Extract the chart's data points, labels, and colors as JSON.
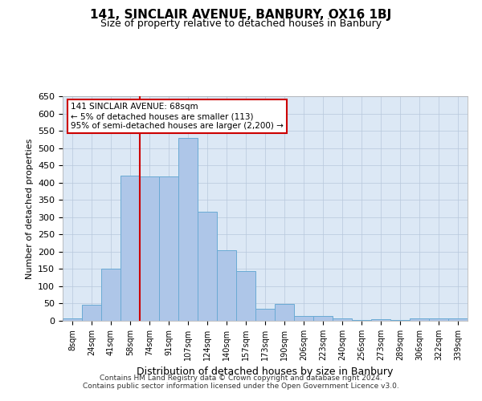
{
  "title1": "141, SINCLAIR AVENUE, BANBURY, OX16 1BJ",
  "title2": "Size of property relative to detached houses in Banbury",
  "xlabel": "Distribution of detached houses by size in Banbury",
  "ylabel": "Number of detached properties",
  "bar_labels": [
    "8sqm",
    "24sqm",
    "41sqm",
    "58sqm",
    "74sqm",
    "91sqm",
    "107sqm",
    "124sqm",
    "140sqm",
    "157sqm",
    "173sqm",
    "190sqm",
    "206sqm",
    "223sqm",
    "240sqm",
    "256sqm",
    "273sqm",
    "289sqm",
    "306sqm",
    "322sqm",
    "339sqm"
  ],
  "bar_values": [
    8,
    46,
    150,
    420,
    418,
    418,
    530,
    315,
    204,
    143,
    35,
    48,
    15,
    13,
    8,
    3,
    5,
    2,
    6,
    7,
    7
  ],
  "bar_color": "#aec6e8",
  "bar_edge_color": "#6aaad4",
  "vline_pos": 3.5,
  "annotation_line1": "141 SINCLAIR AVENUE: 68sqm",
  "annotation_line2": "← 5% of detached houses are smaller (113)",
  "annotation_line3": "95% of semi-detached houses are larger (2,200) →",
  "annotation_box_color": "#ffffff",
  "annotation_box_edge": "#cc0000",
  "vline_color": "#cc0000",
  "footer1": "Contains HM Land Registry data © Crown copyright and database right 2024.",
  "footer2": "Contains public sector information licensed under the Open Government Licence v3.0.",
  "ylim": [
    0,
    650
  ],
  "yticks": [
    0,
    50,
    100,
    150,
    200,
    250,
    300,
    350,
    400,
    450,
    500,
    550,
    600,
    650
  ],
  "bg_color": "#dce8f5",
  "fig_bg": "#ffffff"
}
